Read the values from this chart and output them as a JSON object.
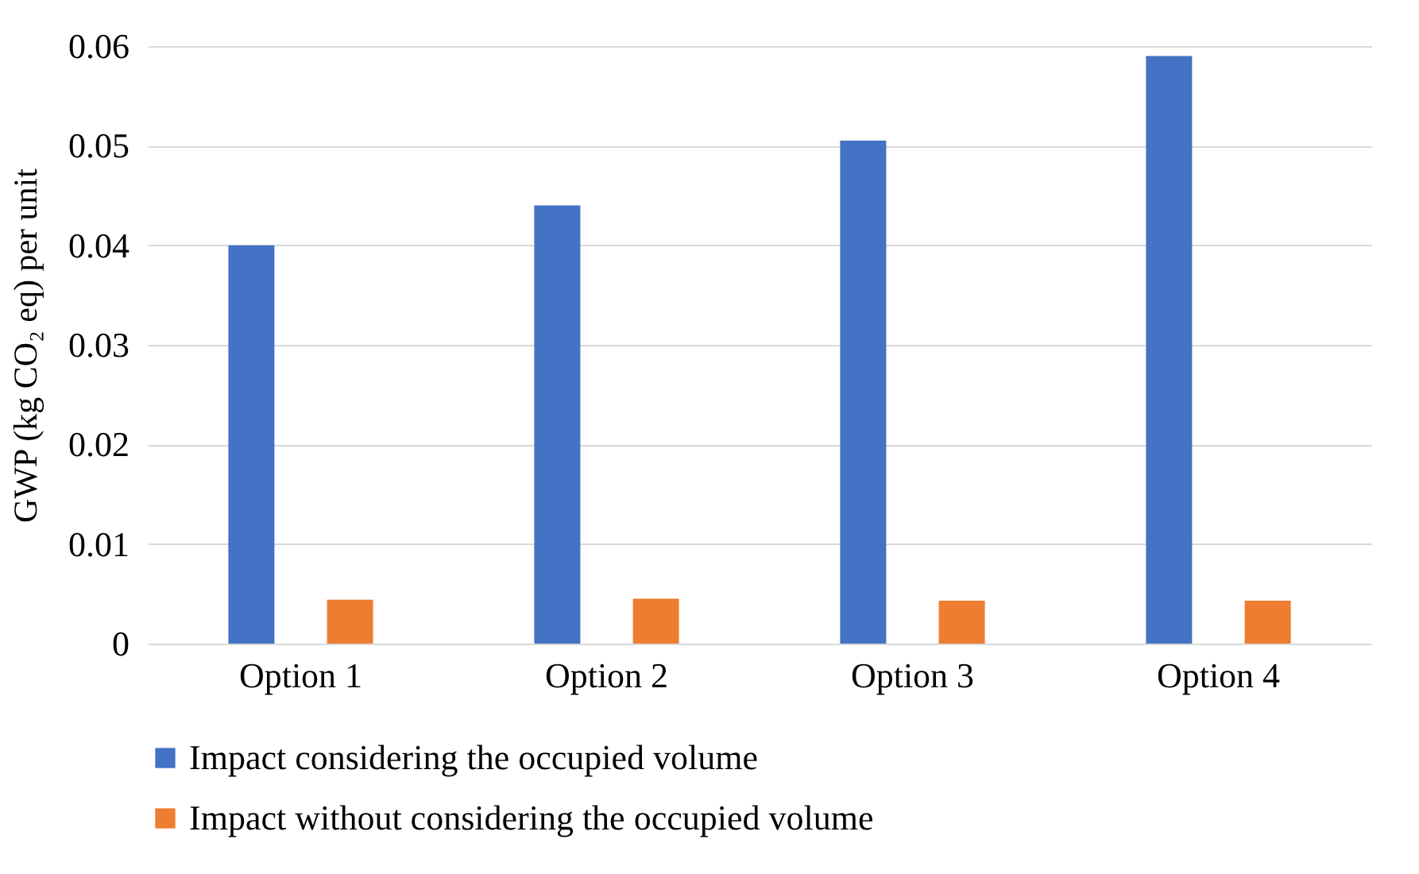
{
  "chart_data": {
    "type": "bar",
    "ylabel": "GWP (kg CO₂ eq) per unit",
    "categories": [
      "Option 1",
      "Option 2",
      "Option 3",
      "Option 4"
    ],
    "series": [
      {
        "name": "Impact considering the occupied volume",
        "color": "#4472c4",
        "values": [
          0.04,
          0.044,
          0.0505,
          0.059
        ]
      },
      {
        "name": "Impact without considering the occupied volume",
        "color": "#ed7d31",
        "values": [
          0.0044,
          0.0045,
          0.0043,
          0.0043
        ]
      }
    ],
    "ylim": [
      0,
      0.06
    ],
    "yticks": [
      0,
      0.01,
      0.02,
      0.03,
      0.04,
      0.05,
      0.06
    ],
    "grid": "y",
    "legend": "bottom"
  }
}
